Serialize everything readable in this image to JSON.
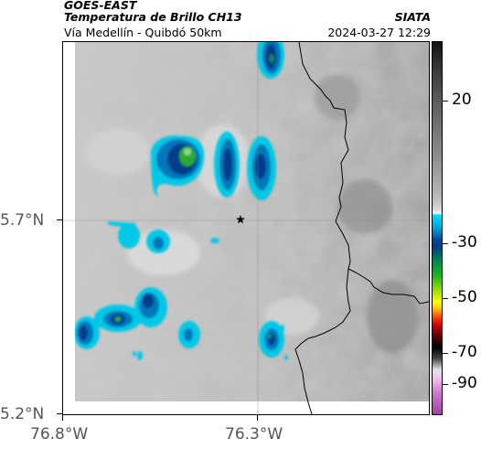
{
  "header": {
    "satellite": "GOES-EAST",
    "product": "Temperatura de Brillo CH13",
    "location": "Vía Medellín - Quibdó 50km",
    "organization": "SIATA",
    "timestamp": "2024-03-27 12:29"
  },
  "axes": {
    "lat_labels": [
      "5.7°N",
      "5.2°N"
    ],
    "lon_labels": [
      "76.8°W",
      "76.3°W"
    ]
  },
  "colorbar": {
    "labels": [
      "20",
      "-30",
      "-50",
      "-70",
      "-90"
    ]
  },
  "marker": {
    "icon": "star-icon"
  },
  "colors": {
    "coastline": "#000000",
    "gridline": "#888888",
    "cold_cloud_cyan": "#00c8e6",
    "cold_cloud_blue": "#00589e",
    "cold_cloud_green": "#2fa82f"
  }
}
